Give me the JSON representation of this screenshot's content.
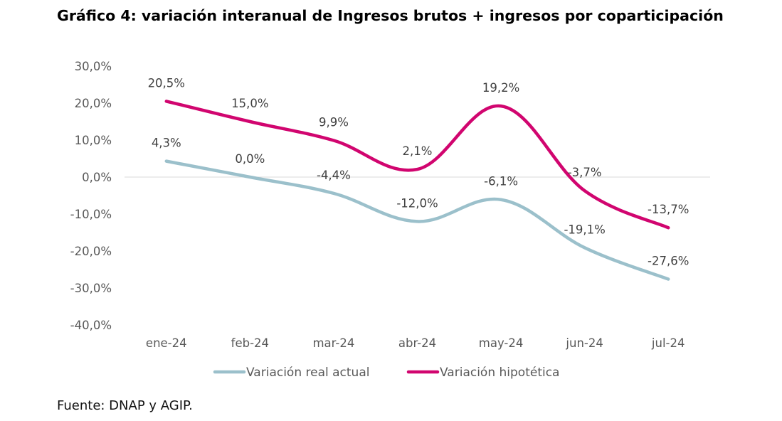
{
  "title": "Gráfico 4: variación interanual de Ingresos brutos + ingresos por coparticipación",
  "source": "Fuente: DNAP y AGIP.",
  "chart_data": {
    "type": "line",
    "categories": [
      "ene-24",
      "feb-24",
      "mar-24",
      "abr-24",
      "may-24",
      "jun-24",
      "jul-24"
    ],
    "ylim": [
      -40,
      30
    ],
    "ytick_values": [
      30,
      20,
      10,
      0,
      -10,
      -20,
      -30,
      -40
    ],
    "ytick_labels": [
      "30,0%",
      "20,0%",
      "10,0%",
      "0,0%",
      "-10,0%",
      "-20,0%",
      "-30,0%",
      "-40,0%"
    ],
    "grid": false,
    "legend": "bottom",
    "series": [
      {
        "name": "Variación real actual",
        "color": "#9bc0cb",
        "values": [
          4.3,
          0.0,
          -4.4,
          -12.0,
          -6.1,
          -19.1,
          -27.6
        ],
        "labels": [
          "4,3%",
          "0,0%",
          "-4,4%",
          "-12,0%",
          "-6,1%",
          "-19,1%",
          "-27,6%"
        ]
      },
      {
        "name": "Variación hipotética",
        "color": "#d1056f",
        "values": [
          20.5,
          15.0,
          9.9,
          2.1,
          19.2,
          -3.7,
          -13.7
        ],
        "labels": [
          "20,5%",
          "15,0%",
          "9,9%",
          "2,1%",
          "19,2%",
          "-3,7%",
          "-13,7%"
        ]
      }
    ]
  }
}
